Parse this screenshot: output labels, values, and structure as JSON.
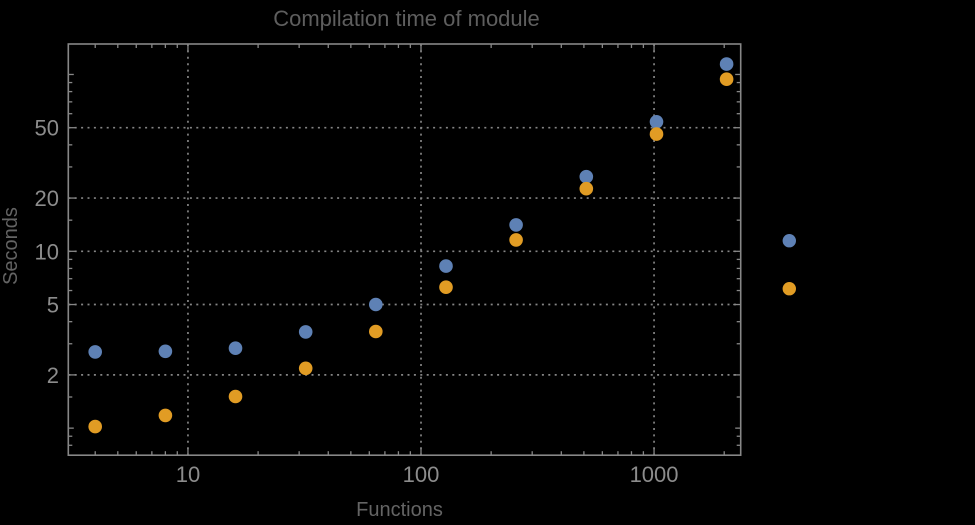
{
  "chart_data": {
    "type": "scatter",
    "title": "Compilation time of module",
    "xlabel": "Functions",
    "ylabel": "Seconds",
    "x_scale": "log",
    "y_scale": "log",
    "xlim": [
      3.066,
      2354
    ],
    "ylim": [
      0.703,
      148.7
    ],
    "x_major_ticks": [
      10,
      100,
      1000
    ],
    "x_tick_labels": [
      "10",
      "100",
      "1000"
    ],
    "x_minor_subs": [
      2,
      3,
      4,
      5,
      6,
      7,
      8,
      9
    ],
    "y_major_ticks": [
      2,
      5,
      10,
      20,
      50
    ],
    "y_tick_labels": [
      "2",
      "5",
      "10",
      "20",
      "50"
    ],
    "y_unlabeled_major_ticks": [
      1,
      100
    ],
    "y_minor_subs": [
      1.5,
      3,
      4,
      6,
      7,
      8,
      9
    ],
    "grid": {
      "style": "dotted",
      "x_at": [
        10,
        100,
        1000
      ],
      "y_at": [
        2,
        5,
        10,
        20,
        50
      ]
    },
    "series": [
      {
        "name": "series-1-blue",
        "color": "#5e81b5",
        "x": [
          4,
          8,
          16,
          32,
          64,
          128,
          256,
          512,
          1024,
          2048
        ],
        "y": [
          2.7,
          2.72,
          2.83,
          3.5,
          5.0,
          8.25,
          14.1,
          26.4,
          54,
          114.5
        ]
      },
      {
        "name": "series-2-orange",
        "color": "#e19c24",
        "x": [
          4,
          8,
          16,
          32,
          64,
          128,
          256,
          512,
          1024,
          2048
        ],
        "y": [
          1.02,
          1.18,
          1.51,
          2.18,
          3.52,
          6.27,
          11.6,
          22.6,
          46,
          94
        ]
      }
    ],
    "legend": {
      "position": "outside-right",
      "entries": [
        {
          "marker_color": "#5e81b5"
        },
        {
          "marker_color": "#e19c24"
        }
      ]
    }
  },
  "colors": {
    "background": "#000000",
    "frame": "#878787",
    "grid": "#858585",
    "tick": "#878787",
    "tick_label": "#8c8c8c",
    "axis_label": "#646464",
    "title": "#5e5e5e"
  }
}
